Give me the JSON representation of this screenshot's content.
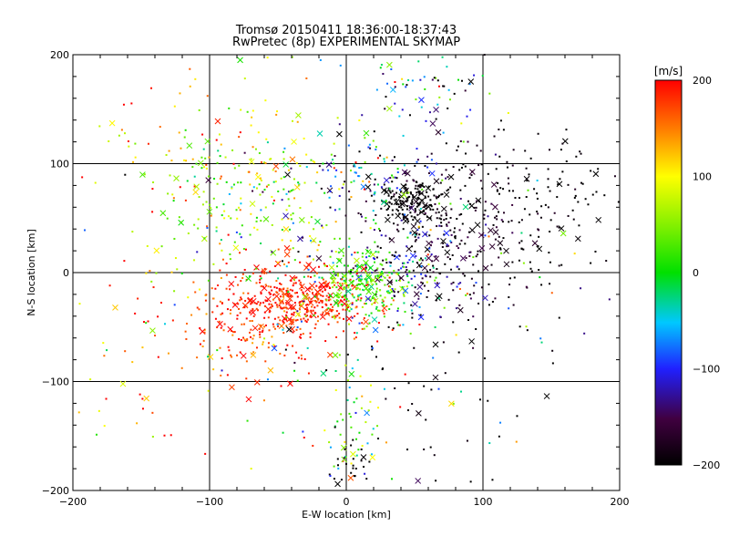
{
  "chart_data": {
    "type": "scatter",
    "title": "Tromsø 20150411 18:36:00-18:37:43",
    "subtitle": "RwPretec (8p) EXPERIMENTAL SKYMAP",
    "xlabel": "E-W location [km]",
    "ylabel": "N-S location [km]",
    "xlim": [
      -200,
      200
    ],
    "ylim": [
      -200,
      200
    ],
    "xticks": [
      -200,
      -100,
      0,
      100,
      200
    ],
    "yticks": [
      -200,
      -100,
      0,
      100,
      200
    ],
    "grid": true,
    "colorbar": {
      "label": "[m/s]",
      "range": [
        -200,
        200
      ],
      "ticks": [
        200,
        100,
        0,
        -100,
        -200
      ],
      "colormap": "black-purple-blue-cyan-green-yellow-red"
    },
    "marker_types": [
      "dot",
      "cross"
    ],
    "clusters": [
      {
        "x": 48,
        "y": 65,
        "sx": 12,
        "sy": 10,
        "v": -200,
        "vs": 8,
        "n": 160
      },
      {
        "x": 85,
        "y": 40,
        "sx": 35,
        "sy": 40,
        "v": -190,
        "vs": 25,
        "n": 280
      },
      {
        "x": 45,
        "y": 10,
        "sx": 30,
        "sy": 20,
        "v": -130,
        "vs": 40,
        "n": 110
      },
      {
        "x": 10,
        "y": 90,
        "sx": 30,
        "sy": 20,
        "v": -80,
        "vs": 70,
        "n": 90
      },
      {
        "x": -35,
        "y": -25,
        "sx": 25,
        "sy": 15,
        "v": 190,
        "vs": 20,
        "n": 380
      },
      {
        "x": -70,
        "y": -50,
        "sx": 35,
        "sy": 30,
        "v": 180,
        "vs": 30,
        "n": 180
      },
      {
        "x": 15,
        "y": -10,
        "sx": 18,
        "sy": 15,
        "v": 30,
        "vs": 30,
        "n": 240
      },
      {
        "x": -70,
        "y": 70,
        "sx": 45,
        "sy": 40,
        "v": 60,
        "vs": 50,
        "n": 230
      },
      {
        "x": -110,
        "y": 130,
        "sx": 50,
        "sy": 40,
        "v": 140,
        "vs": 50,
        "n": 60
      },
      {
        "x": 5,
        "y": -150,
        "sx": 12,
        "sy": 30,
        "v": 30,
        "vs": 80,
        "n": 60
      },
      {
        "x": 5,
        "y": -170,
        "sx": 8,
        "sy": 15,
        "v": -200,
        "vs": 5,
        "n": 25
      },
      {
        "x": -150,
        "y": -100,
        "sx": 40,
        "sy": 60,
        "v": 150,
        "vs": 80,
        "n": 40
      },
      {
        "x": 60,
        "y": 170,
        "sx": 30,
        "sy": 20,
        "v": -60,
        "vs": 120,
        "n": 70
      },
      {
        "x": 140,
        "y": 70,
        "sx": 40,
        "sy": 35,
        "v": -200,
        "vs": 10,
        "n": 100
      },
      {
        "x": 70,
        "y": -100,
        "sx": 40,
        "sy": 60,
        "v": -200,
        "vs": 10,
        "n": 45
      },
      {
        "x": 0,
        "y": 0,
        "sx": 90,
        "sy": 80,
        "v": 0,
        "vs": 130,
        "n": 200
      }
    ],
    "point_count_estimate": 2270
  }
}
